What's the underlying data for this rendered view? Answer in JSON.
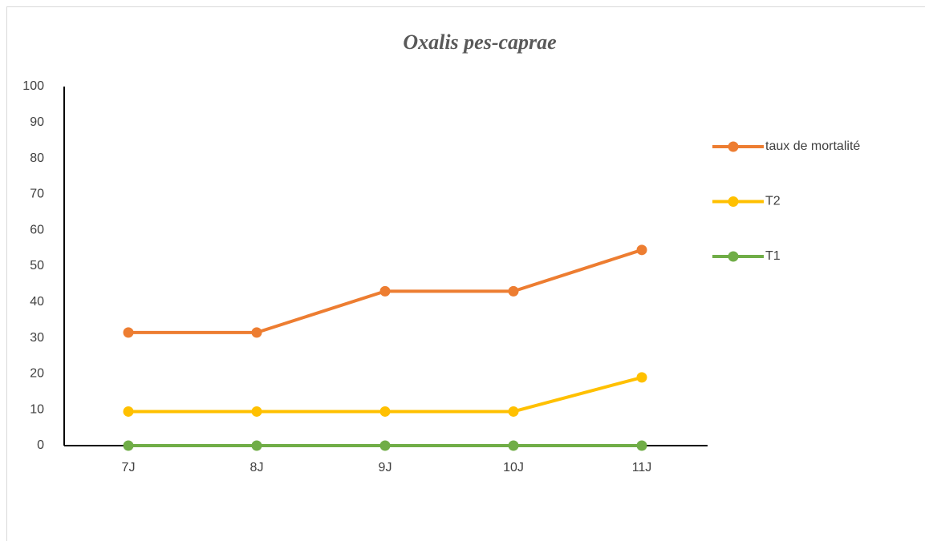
{
  "chart_data": {
    "type": "line",
    "title": "Oxalis pes-caprae",
    "categories": [
      "7J",
      "8J",
      "9J",
      "10J",
      "11J"
    ],
    "series": [
      {
        "name": "taux de mortalité",
        "color": "#ED7D31",
        "values": [
          31.5,
          31.5,
          43,
          43,
          54.5
        ]
      },
      {
        "name": "T2",
        "color": "#FFC000",
        "values": [
          9.5,
          9.5,
          9.5,
          9.5,
          19
        ]
      },
      {
        "name": "T1",
        "color": "#70AD47",
        "values": [
          0,
          0,
          0,
          0,
          0
        ]
      }
    ],
    "ylim": [
      0,
      100
    ],
    "yticks": [
      0,
      10,
      20,
      30,
      40,
      50,
      60,
      70,
      80,
      90,
      100
    ],
    "grid": false,
    "legend": "right"
  }
}
